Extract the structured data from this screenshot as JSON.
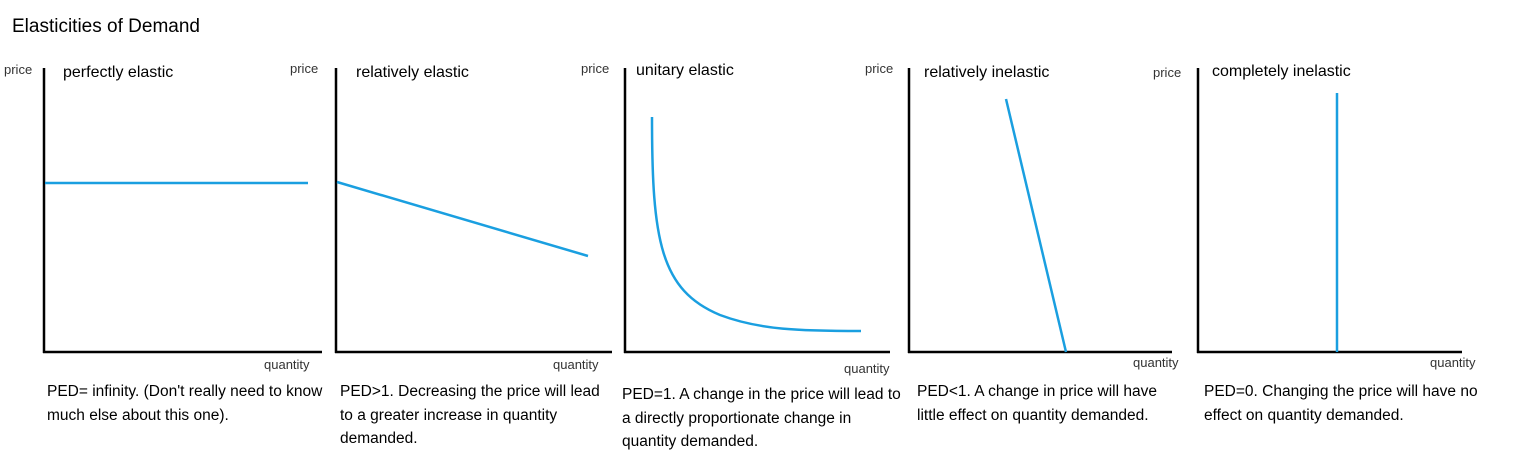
{
  "title": "Elasticities of Demand",
  "colors": {
    "curve": "#1a9fe0",
    "axis": "#000000"
  },
  "panels": [
    {
      "title": "perfectly elastic",
      "y_label": "price",
      "x_label": "quantity",
      "description": "PED= infinity. (Don't really need to know much else about this one).",
      "curve": "horizontal"
    },
    {
      "title": "relatively elastic",
      "y_label": "price",
      "x_label": "quantity",
      "description": "PED>1. Decreasing the price will lead to a greater increase in quantity demanded.",
      "curve": "shallow-downward"
    },
    {
      "title": "unitary elastic",
      "y_label": "price",
      "x_label": "quantity",
      "description": "PED=1. A change in the price will lead to a directly proportionate change in quantity demanded.",
      "curve": "rectangular-hyperbola"
    },
    {
      "title": "relatively inelastic",
      "y_label": "price",
      "x_label": "quantity",
      "description": "PED<1. A change in price will have little effect on quantity demanded.",
      "curve": "steep-downward"
    },
    {
      "title": "completely inelastic",
      "y_label": "price",
      "x_label": "quantity",
      "description": "PED=0. Changing the price will have no effect on quantity demanded.",
      "curve": "vertical"
    }
  ]
}
